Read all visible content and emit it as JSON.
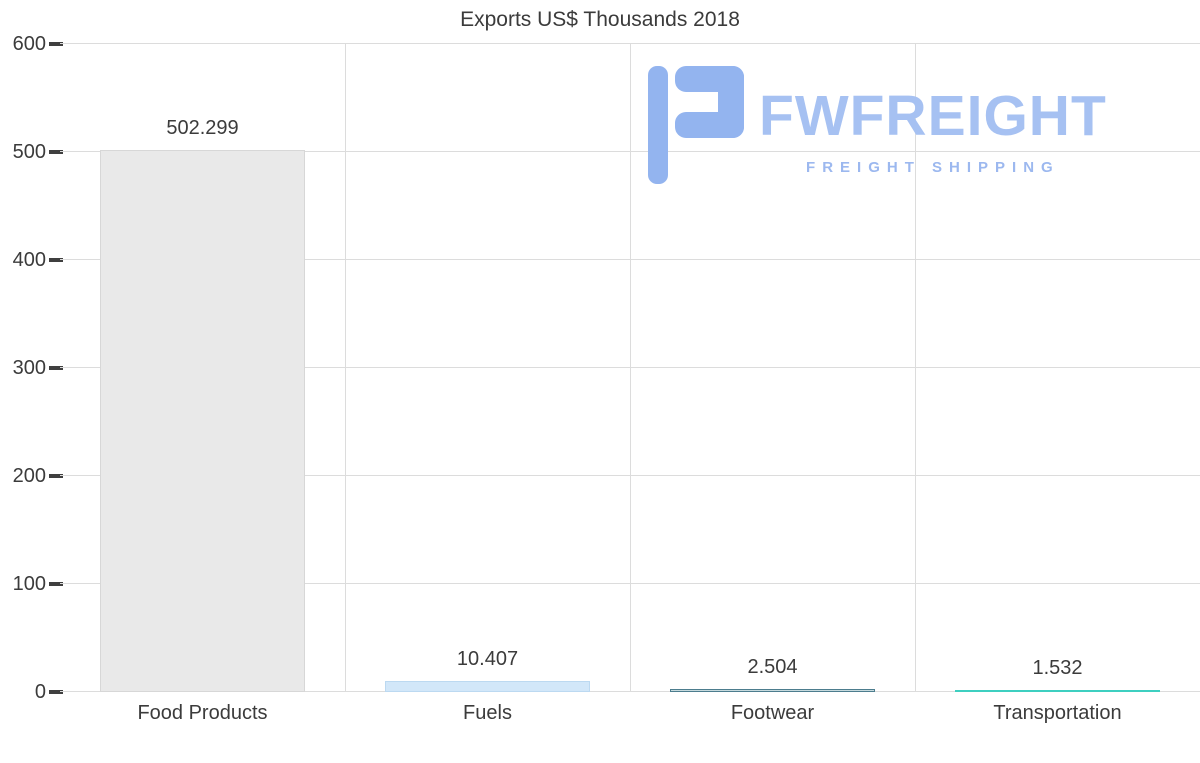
{
  "title": "Exports US$ Thousands 2018",
  "watermark": {
    "brand": "FWFREIGHT",
    "tagline": "FREIGHT SHIPPING",
    "icon": "fwfreight-logo-icon",
    "brand_color": "#a6c1f2",
    "tagline_color": "#9cb8ef",
    "icon_color": "#93b4ef"
  },
  "chart_data": {
    "type": "bar",
    "title": "Exports US$ Thousands 2018",
    "categories": [
      "Food Products",
      "Fuels",
      "Footwear",
      "Transportation"
    ],
    "values": [
      502.299,
      10.407,
      2.504,
      1.532
    ],
    "value_labels": [
      "502.299",
      "10.407",
      "2.504",
      "1.532"
    ],
    "bar_colors": [
      "#e9e9e9",
      "#d2e7f9",
      "#c6dade",
      "#b9ece6"
    ],
    "bar_border_colors": [
      "#d7d7d7",
      "#bcd9f1",
      "#4d7d8e",
      "#3ecfc0"
    ],
    "xlabel": "",
    "ylabel": "",
    "ylim": [
      0,
      600
    ],
    "yticks": [
      0,
      100,
      200,
      300,
      400,
      500,
      600
    ],
    "grid": true,
    "legend": "none"
  }
}
